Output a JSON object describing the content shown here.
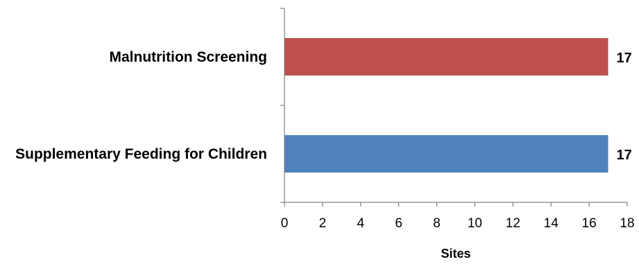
{
  "chart_data": {
    "type": "bar",
    "orientation": "horizontal",
    "categories": [
      "Malnutrition Screening",
      "Supplementary Feeding for Children"
    ],
    "values": [
      17,
      17
    ],
    "data_labels": [
      "17",
      "17"
    ],
    "bar_colors": [
      "#c0504d",
      "#4f81bd"
    ],
    "xlabel": "Sites",
    "ylabel": "",
    "title": "",
    "xlim": [
      0,
      18
    ],
    "x_ticks": [
      0,
      2,
      4,
      6,
      8,
      10,
      12,
      14,
      16,
      18
    ],
    "grid": false,
    "legend": "none"
  }
}
